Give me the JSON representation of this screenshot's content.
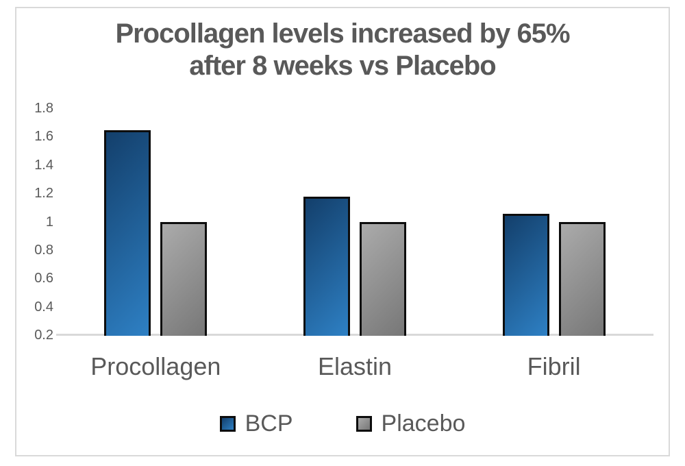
{
  "chart_data": {
    "type": "bar",
    "title": "Procollagen levels increased by 65% after 8 weeks vs Placebo",
    "title_lines": [
      "Procollagen levels increased by 65%",
      "after 8 weeks vs Placebo"
    ],
    "categories": [
      "Procollagen",
      "Elastin",
      "Fibril"
    ],
    "series": [
      {
        "name": "BCP",
        "values": [
          1.65,
          1.18,
          1.06
        ],
        "color_start": "#133f6b",
        "color_end": "#2e80c4"
      },
      {
        "name": "Placebo",
        "values": [
          1.0,
          1.0,
          1.0
        ],
        "color_start": "#ababab",
        "color_end": "#777777"
      }
    ],
    "y_axis": {
      "min": 0.2,
      "max": 1.8,
      "step": 0.2,
      "tick_labels": [
        "1.8",
        "1.6",
        "1.4",
        "1.2",
        "1",
        "0.8",
        "0.6",
        "0.4",
        "0.2"
      ]
    },
    "xlabel": "",
    "ylabel": "",
    "grid": false,
    "legend_position": "bottom",
    "colors": {
      "text": "#595959",
      "axis": "#d9d9d9",
      "bar_border": "#0d0d0d",
      "frame_border": "#d9d9d9"
    }
  }
}
